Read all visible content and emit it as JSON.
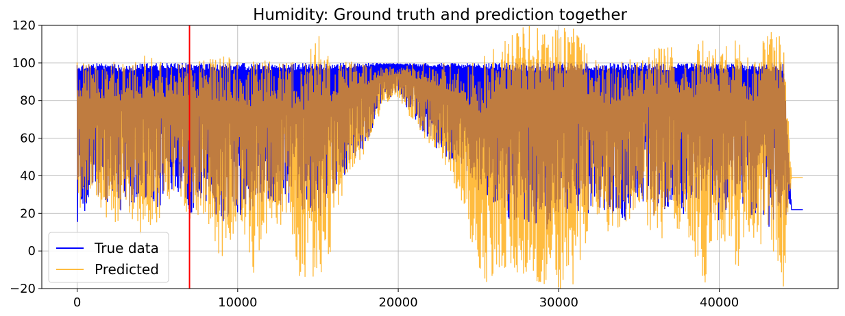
{
  "chart_data": {
    "type": "line",
    "title": "Humidity: Ground truth and prediction together",
    "xlabel": "",
    "ylabel": "",
    "xlim": [
      -2200,
      47400
    ],
    "ylim": [
      -20,
      120
    ],
    "xticks": [
      0,
      10000,
      20000,
      30000,
      40000
    ],
    "xtick_labels": [
      "0",
      "10000",
      "20000",
      "30000",
      "40000"
    ],
    "yticks": [
      -20,
      0,
      20,
      40,
      60,
      80,
      100,
      120
    ],
    "ytick_labels": [
      "−20",
      "0",
      "20",
      "40",
      "60",
      "80",
      "100",
      "120"
    ],
    "grid": true,
    "legend_position": "lower-left",
    "vertical_marker": {
      "x": 7000,
      "color": "#ff0000"
    },
    "series": [
      {
        "name": "True data",
        "color": "#0000ff",
        "x": [
          0,
          1000,
          2000,
          3000,
          4000,
          5000,
          6000,
          7000,
          8000,
          9000,
          10000,
          11000,
          12000,
          13000,
          14000,
          15000,
          16000,
          17000,
          18000,
          19000,
          20000,
          21000,
          22000,
          23000,
          24000,
          25000,
          26000,
          27000,
          28000,
          29000,
          30000,
          31000,
          32000,
          33000,
          34000,
          35000,
          36000,
          37000,
          38000,
          39000,
          40000,
          41000,
          42000,
          43000,
          44000,
          44500,
          45200
        ],
        "upper": [
          100,
          100,
          100,
          99,
          100,
          100,
          100,
          100,
          100,
          100,
          100,
          100,
          100,
          100,
          100,
          100,
          100,
          100,
          100,
          100,
          100,
          100,
          100,
          100,
          100,
          100,
          100,
          100,
          100,
          100,
          100,
          100,
          100,
          100,
          100,
          100,
          100,
          100,
          100,
          100,
          100,
          100,
          100,
          100,
          100,
          22,
          22
        ],
        "lower": [
          12,
          30,
          22,
          20,
          25,
          18,
          33,
          20,
          22,
          15,
          18,
          20,
          24,
          22,
          22,
          15,
          30,
          45,
          55,
          78,
          85,
          68,
          58,
          48,
          45,
          32,
          25,
          15,
          15,
          10,
          15,
          20,
          18,
          22,
          14,
          25,
          18,
          22,
          18,
          20,
          15,
          25,
          18,
          10,
          15,
          22,
          22
        ]
      },
      {
        "name": "Predicted",
        "color": "#ffa500",
        "x": [
          0,
          1000,
          2000,
          3000,
          4000,
          5000,
          6000,
          7000,
          8000,
          9000,
          10000,
          11000,
          12000,
          13000,
          14000,
          15000,
          16000,
          17000,
          18000,
          19000,
          20000,
          21000,
          22000,
          23000,
          24000,
          25000,
          26000,
          27000,
          28000,
          29000,
          30000,
          31000,
          32000,
          33000,
          34000,
          35000,
          36000,
          37000,
          38000,
          39000,
          40000,
          41000,
          42000,
          43000,
          44000,
          44500,
          45200
        ],
        "upper": [
          101,
          100,
          101,
          100,
          105,
          102,
          100,
          100,
          102,
          104,
          103,
          102,
          101,
          100,
          104,
          118,
          100,
          101,
          99,
          98,
          98,
          100,
          100,
          100,
          100,
          100,
          114,
          118,
          120,
          120,
          120,
          120,
          105,
          100,
          102,
          102,
          108,
          112,
          102,
          120,
          106,
          115,
          100,
          118,
          120,
          39,
          39
        ],
        "lower": [
          8,
          28,
          15,
          15,
          8,
          15,
          30,
          15,
          20,
          -9,
          10,
          -13,
          15,
          10,
          -20,
          -20,
          2,
          42,
          52,
          76,
          82,
          66,
          55,
          45,
          25,
          -20,
          -20,
          -10,
          -20,
          -20,
          -20,
          -20,
          15,
          10,
          10,
          25,
          3,
          10,
          10,
          -20,
          8,
          -10,
          0,
          3,
          -20,
          39,
          39
        ]
      }
    ]
  }
}
